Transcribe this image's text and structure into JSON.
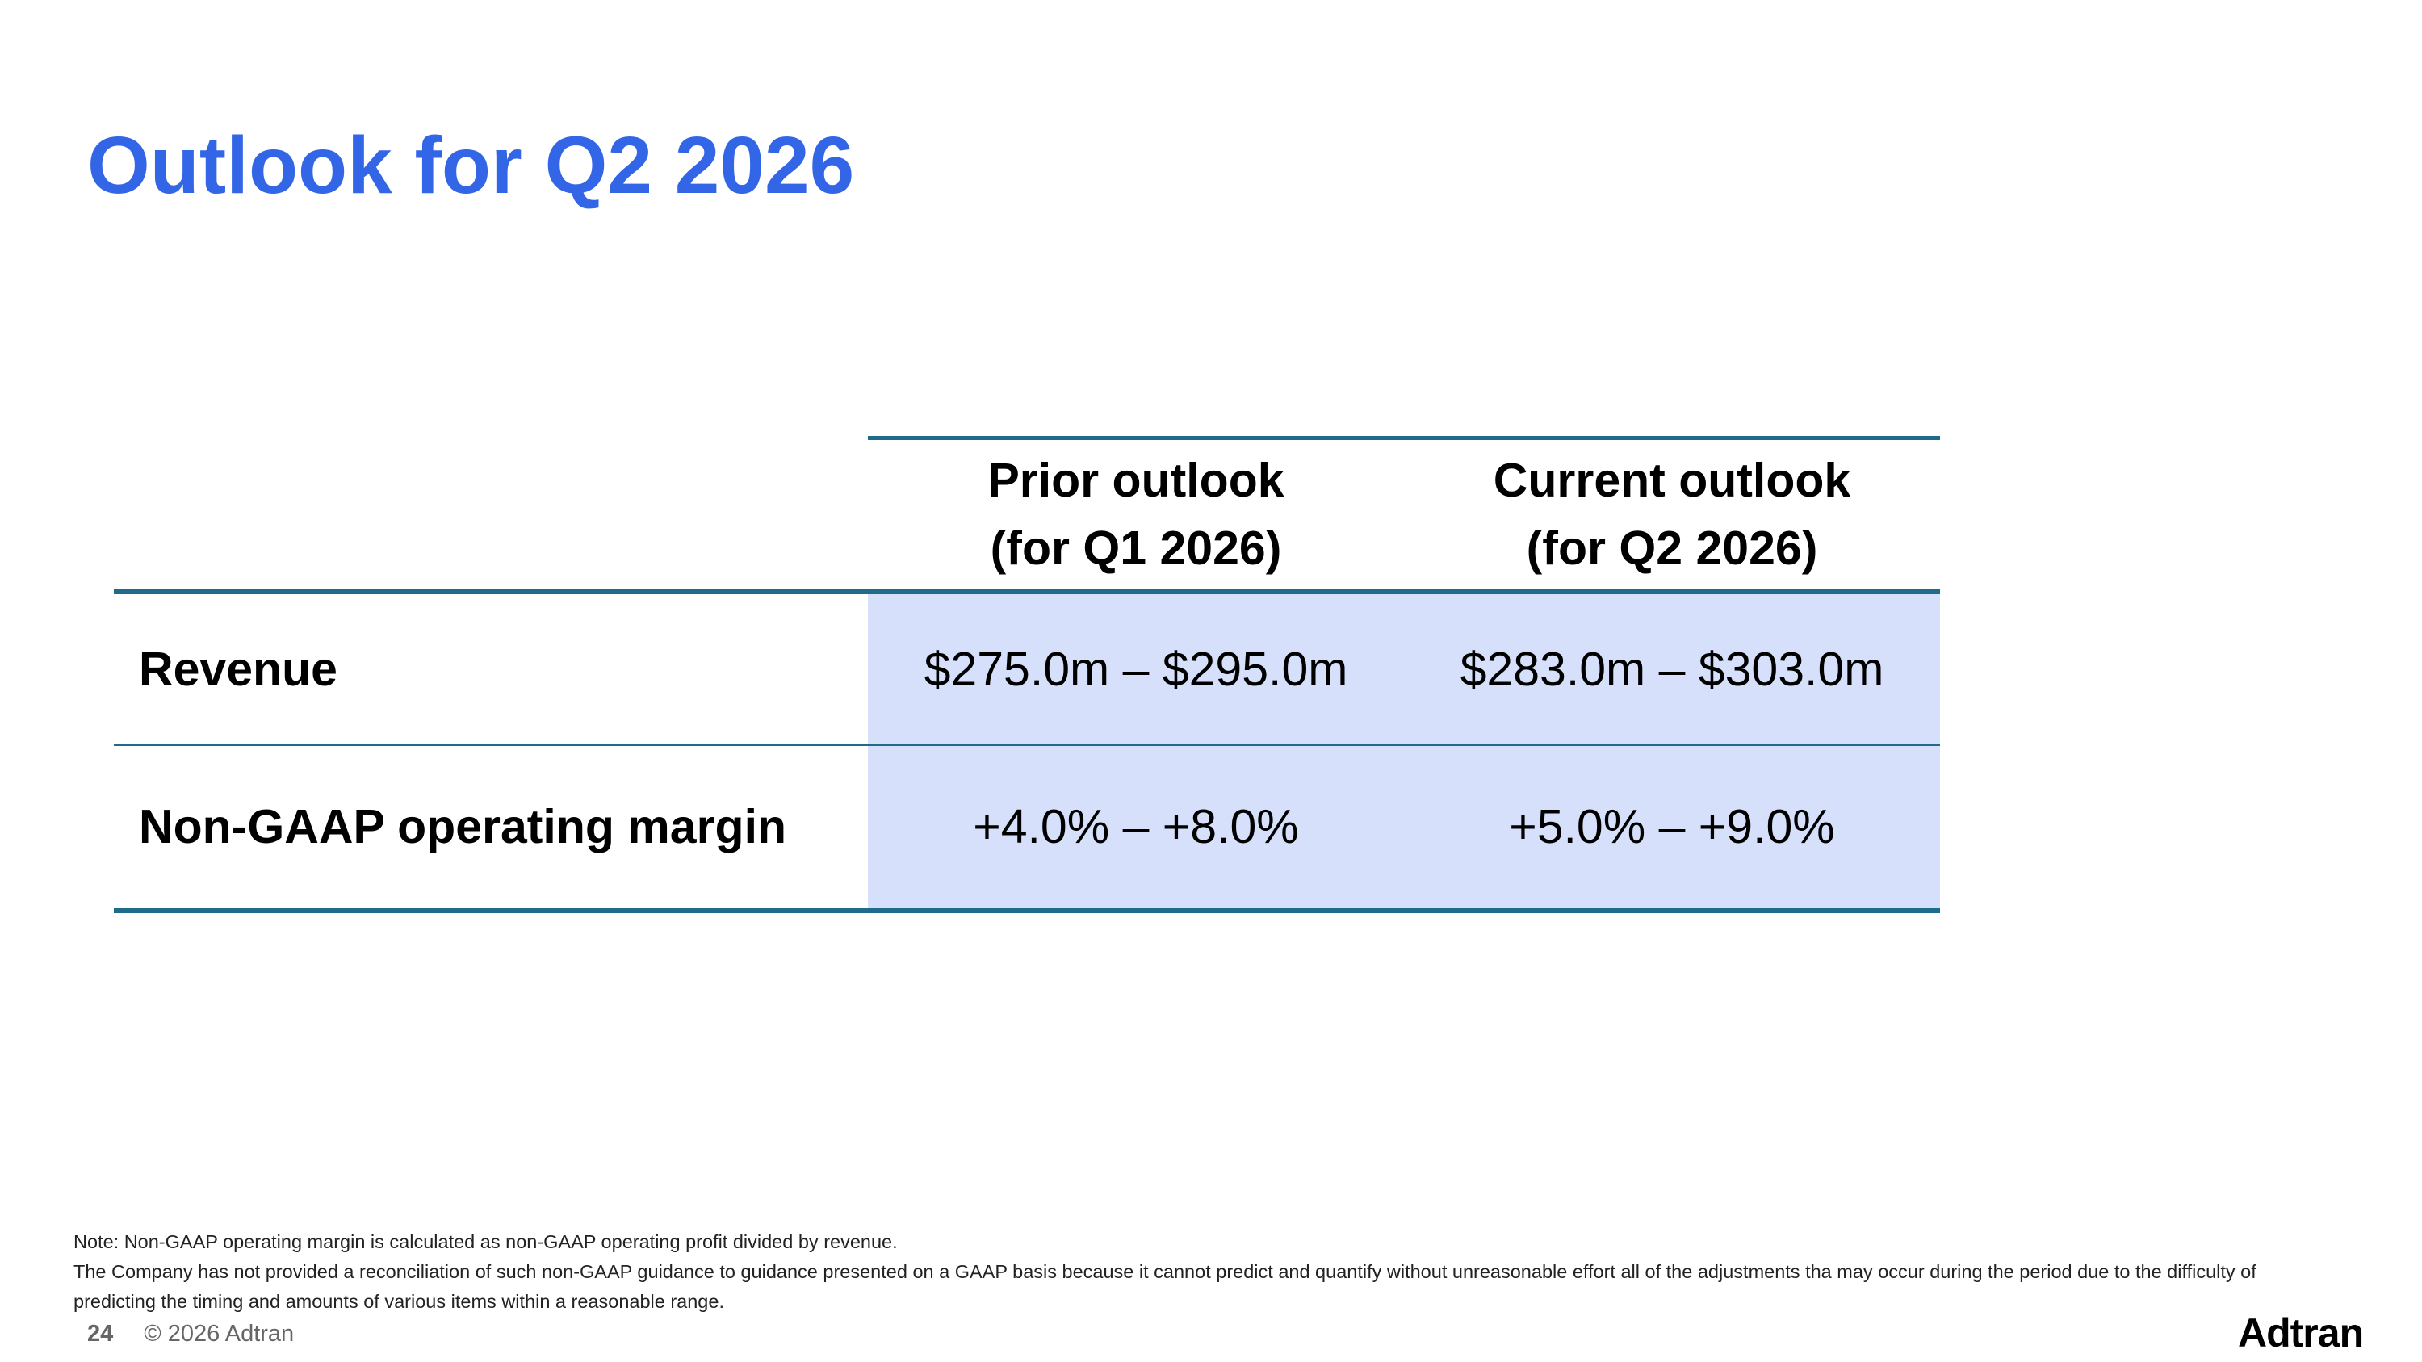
{
  "slide": {
    "title": "Outlook for Q2 2026"
  },
  "table": {
    "columns": [
      {
        "line1": "",
        "line2": ""
      },
      {
        "line1": "Prior outlook",
        "line2": "(for Q1 2026)"
      },
      {
        "line1": "Current outlook",
        "line2": "(for Q2 2026)"
      }
    ],
    "rows": [
      {
        "label": "Revenue",
        "prior": "$275.0m – $295.0m",
        "current": "$283.0m – $303.0m"
      },
      {
        "label": "Non-GAAP operating margin",
        "prior": "+4.0% – +8.0%",
        "current": "+5.0% – +9.0%"
      }
    ]
  },
  "footnote": {
    "line1": "Note: Non-GAAP operating margin is calculated as non-GAAP operating profit divided by revenue.",
    "line2": "The Company has not provided a reconciliation of such non-GAAP guidance to guidance presented on a GAAP basis because it cannot predict and quantify without unreasonable effort all of the adjustments tha may occur during the period due to the difficulty of predicting the timing and amounts of various items within a reasonable range."
  },
  "footer": {
    "page_number": "24",
    "copyright": "© 2026 Adtran"
  },
  "logo": {
    "text": "Adtran"
  },
  "colors": {
    "title": "#3366e6",
    "rule": "#1f6b8c",
    "cell_fill": "#d6e0fa"
  }
}
